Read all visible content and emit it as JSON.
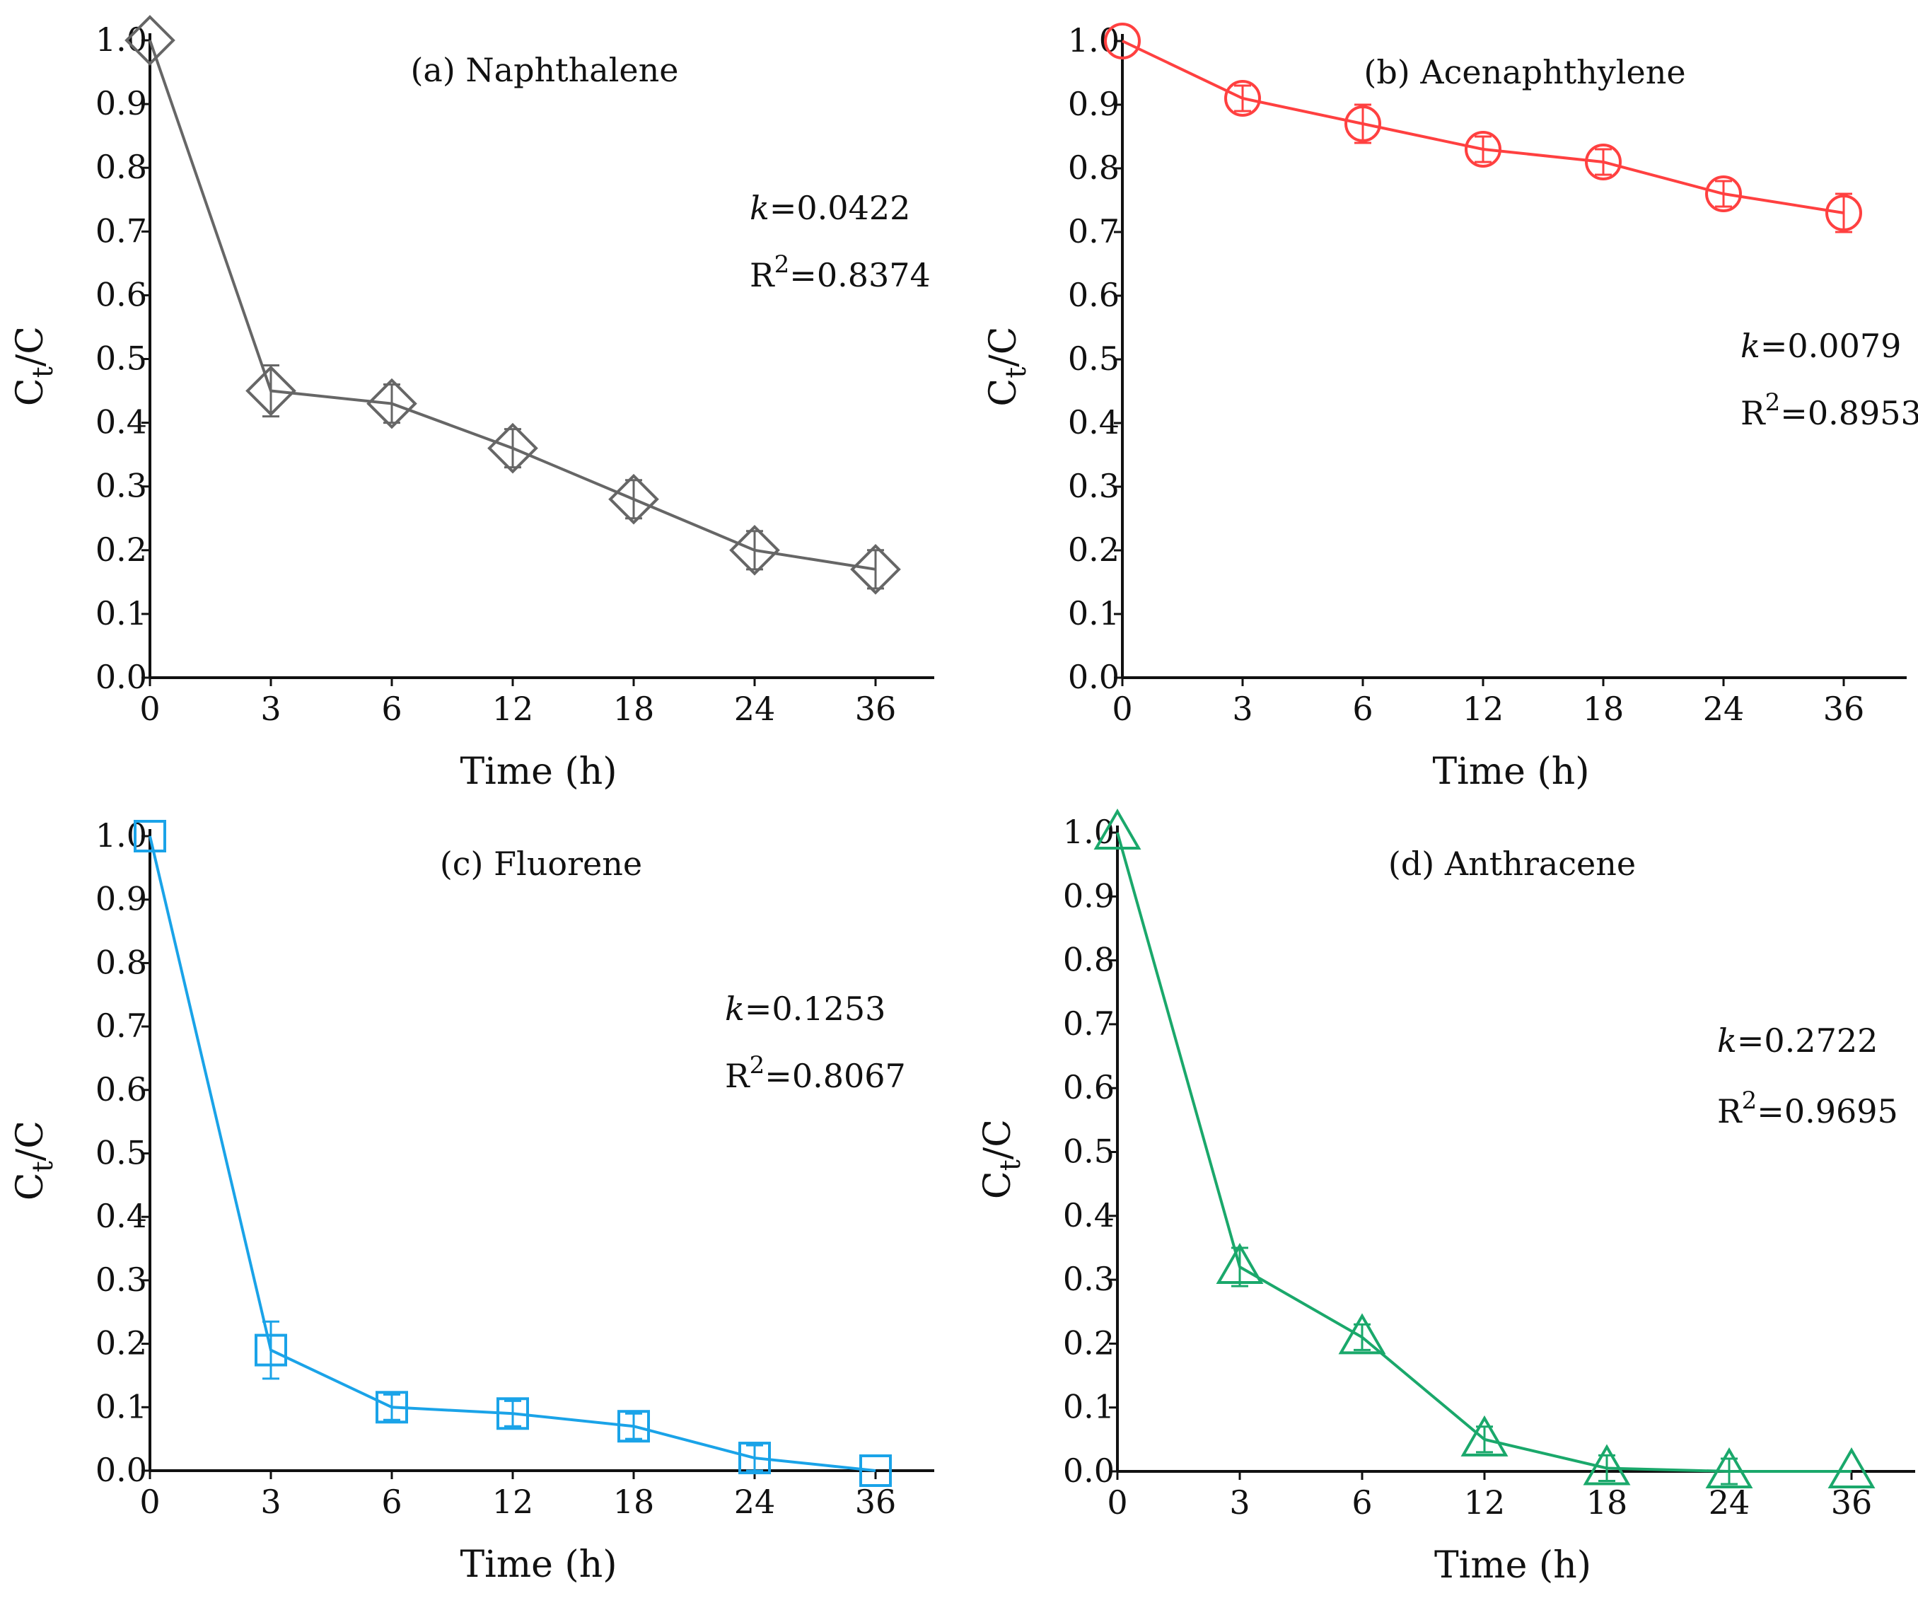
{
  "chart_data": [
    {
      "type": "line",
      "title": "(a) Naphthalene",
      "xlabel": "Time (h)",
      "ylabel": "Ct/C",
      "ylabel_main": "C",
      "ylabel_sub": "t",
      "ylabel_tail": "/C",
      "categories": [
        "0",
        "3",
        "6",
        "12",
        "18",
        "24",
        "36"
      ],
      "yticks": [
        "0.0",
        "0.1",
        "0.2",
        "0.3",
        "0.4",
        "0.5",
        "0.6",
        "0.7",
        "0.8",
        "0.9",
        "1.0"
      ],
      "ylim": [
        0,
        1
      ],
      "values": [
        1.0,
        0.45,
        0.43,
        0.36,
        0.28,
        0.2,
        0.17
      ],
      "errors": [
        0,
        0.04,
        0.03,
        0.03,
        0.03,
        0.03,
        0.03
      ],
      "marker": "diamond",
      "color": "#666666",
      "k_label": "k",
      "k_value": "=0.0422",
      "r2_label": "R",
      "r2_sup": "2",
      "r2_value": "=0.8374"
    },
    {
      "type": "line",
      "title": "(b) Acenaphthylene",
      "xlabel": "Time (h)",
      "ylabel": "Ct/C",
      "ylabel_main": "C",
      "ylabel_sub": "t",
      "ylabel_tail": "/C",
      "categories": [
        "0",
        "3",
        "6",
        "12",
        "18",
        "24",
        "36"
      ],
      "yticks": [
        "0.0",
        "0.1",
        "0.2",
        "0.3",
        "0.4",
        "0.5",
        "0.6",
        "0.7",
        "0.8",
        "0.9",
        "1.0"
      ],
      "ylim": [
        0,
        1
      ],
      "values": [
        1.0,
        0.91,
        0.87,
        0.83,
        0.81,
        0.76,
        0.73
      ],
      "errors": [
        0,
        0.02,
        0.03,
        0.02,
        0.02,
        0.02,
        0.03
      ],
      "marker": "circle",
      "color": "#ff4040",
      "k_label": "k",
      "k_value": "=0.0079",
      "r2_label": "R",
      "r2_sup": "2",
      "r2_value": "=0.8953"
    },
    {
      "type": "line",
      "title": "(c) Fluorene",
      "xlabel": "Time (h)",
      "ylabel": "Ct/C",
      "ylabel_main": "C",
      "ylabel_sub": "t",
      "ylabel_tail": "/C",
      "categories": [
        "0",
        "3",
        "6",
        "12",
        "18",
        "24",
        "36"
      ],
      "yticks": [
        "0.0",
        "0.1",
        "0.2",
        "0.3",
        "0.4",
        "0.5",
        "0.6",
        "0.7",
        "0.8",
        "0.9",
        "1.0"
      ],
      "ylim": [
        0,
        1
      ],
      "values": [
        1.0,
        0.19,
        0.1,
        0.09,
        0.07,
        0.02,
        0.0
      ],
      "errors": [
        0,
        0.045,
        0.02,
        0.02,
        0.02,
        0.02,
        0
      ],
      "marker": "square",
      "color": "#1aa3e8",
      "k_label": "k",
      "k_value": "=0.1253",
      "r2_label": "R",
      "r2_sup": "2",
      "r2_value": "=0.8067"
    },
    {
      "type": "line",
      "title": "(d) Anthracene",
      "xlabel": "Time (h)",
      "ylabel": "Ct/C",
      "ylabel_main": "C",
      "ylabel_sub": "t",
      "ylabel_tail": "/C",
      "categories": [
        "0",
        "3",
        "6",
        "12",
        "18",
        "24",
        "36"
      ],
      "yticks": [
        "0.0",
        "0.1",
        "0.2",
        "0.3",
        "0.4",
        "0.5",
        "0.6",
        "0.7",
        "0.8",
        "0.9",
        "1.0"
      ],
      "ylim": [
        0,
        1
      ],
      "values": [
        1.0,
        0.32,
        0.21,
        0.05,
        0.005,
        0.0,
        0.0
      ],
      "errors": [
        0,
        0.03,
        0.02,
        0.02,
        0.02,
        0.02,
        0
      ],
      "marker": "triangle",
      "color": "#1aa86b",
      "k_label": "k",
      "k_value": "=0.2722",
      "r2_label": "R",
      "r2_sup": "2",
      "r2_value": "=0.9695"
    }
  ]
}
